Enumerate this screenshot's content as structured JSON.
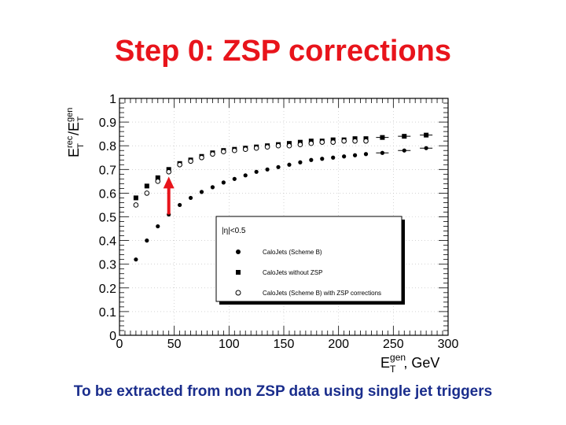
{
  "slide": {
    "title": "Step 0: ZSP corrections",
    "caption": "To be extracted from non ZSP data using single jet triggers"
  },
  "colors": {
    "title": "#e8141b",
    "caption": "#1a2d8c",
    "arrow": "#e8141b",
    "markers": "#000000"
  },
  "chart_data": {
    "type": "scatter",
    "title": "",
    "ylabel": {
      "main": "E",
      "sup1": "rec",
      "sub1": "T",
      "slash": "/E",
      "sup2": "gen",
      "sub2": "T"
    },
    "xlabel": {
      "main": "E",
      "sup": "gen",
      "sub": "T",
      "unit": ", GeV"
    },
    "xlim": [
      0,
      300
    ],
    "ylim": [
      0,
      1
    ],
    "x_ticks": [
      0,
      50,
      100,
      150,
      200,
      250,
      300
    ],
    "x_tick_labels": [
      "0",
      "50",
      "100",
      "150",
      "200",
      "250",
      "300"
    ],
    "y_ticks": [
      0,
      0.1,
      0.2,
      0.3,
      0.4,
      0.5,
      0.6,
      0.7,
      0.8,
      0.9,
      1
    ],
    "y_tick_labels": [
      "0",
      "0.1",
      "0.2",
      "0.3",
      "0.4",
      "0.5",
      "0.6",
      "0.7",
      "0.8",
      "0.9",
      "1"
    ],
    "legend": {
      "placement": "center-right",
      "header": "|η|<0.5",
      "entries": [
        "CaloJets (Scheme B)",
        "CaloJets without ZSP",
        "CaloJets (Scheme B) with ZSP corrections"
      ]
    },
    "annotation": {
      "type": "arrow",
      "x": 45,
      "y_from": 0.51,
      "y_to": 0.67
    },
    "series": [
      {
        "marker": "filled-circle",
        "x": [
          15,
          25,
          35,
          45,
          55,
          65,
          75,
          85,
          95,
          105,
          115,
          125,
          135,
          145,
          155,
          165,
          175,
          185,
          195,
          205,
          215,
          225,
          240,
          260,
          280
        ],
        "y": [
          0.32,
          0.4,
          0.46,
          0.51,
          0.55,
          0.58,
          0.605,
          0.625,
          0.645,
          0.66,
          0.675,
          0.69,
          0.7,
          0.71,
          0.72,
          0.73,
          0.74,
          0.745,
          0.75,
          0.755,
          0.76,
          0.765,
          0.77,
          0.78,
          0.79
        ]
      },
      {
        "marker": "filled-square",
        "x": [
          15,
          25,
          35,
          45,
          55,
          65,
          75,
          85,
          95,
          105,
          115,
          125,
          135,
          145,
          155,
          165,
          175,
          185,
          195,
          205,
          215,
          225,
          240,
          260,
          280
        ],
        "y": [
          0.58,
          0.63,
          0.665,
          0.7,
          0.725,
          0.74,
          0.755,
          0.77,
          0.78,
          0.785,
          0.79,
          0.795,
          0.8,
          0.805,
          0.81,
          0.815,
          0.82,
          0.82,
          0.825,
          0.825,
          0.83,
          0.83,
          0.835,
          0.84,
          0.845
        ]
      },
      {
        "marker": "open-circle",
        "x": [
          15,
          25,
          35,
          45,
          55,
          65,
          75,
          85,
          95,
          105,
          115,
          125,
          135,
          145,
          155,
          165,
          175,
          185,
          195,
          205,
          215,
          225
        ],
        "y": [
          0.55,
          0.6,
          0.65,
          0.69,
          0.72,
          0.735,
          0.75,
          0.765,
          0.775,
          0.78,
          0.785,
          0.79,
          0.795,
          0.8,
          0.8,
          0.805,
          0.81,
          0.815,
          0.815,
          0.82,
          0.82,
          0.82
        ]
      }
    ]
  }
}
